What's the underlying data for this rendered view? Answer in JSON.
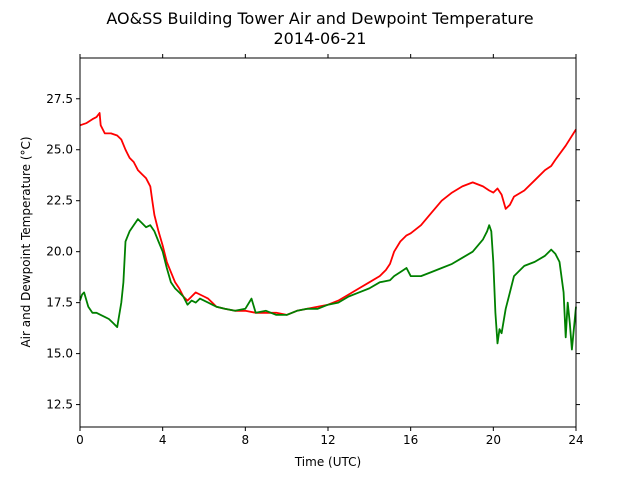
{
  "chart_data": {
    "type": "line",
    "title": "AO&SS Building Tower Air and Dewpoint Temperature",
    "subtitle": "2014-06-21",
    "xlabel": "Time (UTC)",
    "ylabel": "Air and Dewpoint Temperature (°C)",
    "xlim": [
      0,
      24
    ],
    "ylim": [
      11.4,
      29.5
    ],
    "xticks": [
      0,
      4,
      8,
      12,
      16,
      20,
      24
    ],
    "yticks": [
      12.5,
      15.0,
      17.5,
      20.0,
      22.5,
      25.0,
      27.5
    ],
    "grid": false,
    "legend": "none",
    "series": [
      {
        "color": "#ff0000",
        "x": [
          0,
          0.3,
          0.6,
          0.8,
          0.95,
          1.0,
          1.2,
          1.5,
          1.8,
          2.0,
          2.2,
          2.4,
          2.6,
          2.8,
          3.0,
          3.2,
          3.4,
          3.5,
          3.6,
          3.8,
          4.0,
          4.2,
          4.4,
          4.6,
          4.8,
          5.0,
          5.2,
          5.4,
          5.6,
          5.8,
          6.0,
          6.2,
          6.4,
          6.6,
          7.0,
          7.5,
          8.0,
          8.5,
          9.0,
          9.5,
          10.0,
          10.5,
          11.0,
          11.5,
          12.0,
          12.5,
          13.0,
          13.5,
          14.0,
          14.5,
          14.8,
          15.0,
          15.2,
          15.5,
          15.8,
          16.0,
          16.5,
          17.0,
          17.5,
          18.0,
          18.5,
          19.0,
          19.5,
          19.8,
          20.0,
          20.2,
          20.4,
          20.6,
          20.8,
          21.0,
          21.5,
          22.0,
          22.5,
          22.8,
          23.0,
          23.5,
          24.0
        ],
        "values": [
          26.2,
          26.3,
          26.5,
          26.6,
          26.8,
          26.2,
          25.8,
          25.8,
          25.7,
          25.5,
          25.0,
          24.6,
          24.4,
          24.0,
          23.8,
          23.6,
          23.2,
          22.5,
          21.8,
          21.0,
          20.3,
          19.5,
          19.0,
          18.5,
          18.2,
          17.8,
          17.6,
          17.8,
          18.0,
          17.9,
          17.8,
          17.7,
          17.5,
          17.3,
          17.2,
          17.1,
          17.1,
          17.0,
          17.0,
          17.0,
          16.9,
          17.1,
          17.2,
          17.3,
          17.4,
          17.6,
          17.9,
          18.2,
          18.5,
          18.8,
          19.1,
          19.4,
          20.0,
          20.5,
          20.8,
          20.9,
          21.3,
          21.9,
          22.5,
          22.9,
          23.2,
          23.4,
          23.2,
          23.0,
          22.9,
          23.1,
          22.8,
          22.1,
          22.3,
          22.7,
          23.0,
          23.5,
          24.0,
          24.2,
          24.5,
          25.2,
          26.0
        ]
      },
      {
        "color": "#008000",
        "x": [
          0,
          0.1,
          0.2,
          0.4,
          0.6,
          0.8,
          1.0,
          1.2,
          1.4,
          1.6,
          1.8,
          2.0,
          2.1,
          2.2,
          2.4,
          2.6,
          2.8,
          3.0,
          3.2,
          3.4,
          3.6,
          3.8,
          4.0,
          4.2,
          4.4,
          4.6,
          4.8,
          5.0,
          5.2,
          5.4,
          5.6,
          5.8,
          6.0,
          6.2,
          6.4,
          6.6,
          7.0,
          7.5,
          8.0,
          8.3,
          8.5,
          9.0,
          9.5,
          10.0,
          10.5,
          11.0,
          11.5,
          12.0,
          12.5,
          13.0,
          13.5,
          14.0,
          14.5,
          15.0,
          15.2,
          15.5,
          15.8,
          16.0,
          16.5,
          17.0,
          17.5,
          18.0,
          18.5,
          19.0,
          19.5,
          19.7,
          19.8,
          19.9,
          20.0,
          20.1,
          20.2,
          20.3,
          20.4,
          20.6,
          20.8,
          21.0,
          21.5,
          22.0,
          22.5,
          22.8,
          23.0,
          23.2,
          23.4,
          23.5,
          23.6,
          23.7,
          23.8,
          24.0
        ],
        "values": [
          17.6,
          17.9,
          18.0,
          17.3,
          17.0,
          17.0,
          16.9,
          16.8,
          16.7,
          16.5,
          16.3,
          17.5,
          18.5,
          20.5,
          21.0,
          21.3,
          21.6,
          21.4,
          21.2,
          21.3,
          21.0,
          20.5,
          20.0,
          19.2,
          18.5,
          18.2,
          18.0,
          17.8,
          17.4,
          17.6,
          17.5,
          17.7,
          17.6,
          17.5,
          17.4,
          17.3,
          17.2,
          17.1,
          17.2,
          17.7,
          17.0,
          17.1,
          16.9,
          16.9,
          17.1,
          17.2,
          17.2,
          17.4,
          17.5,
          17.8,
          18.0,
          18.2,
          18.5,
          18.6,
          18.8,
          19.0,
          19.2,
          18.8,
          18.8,
          19.0,
          19.2,
          19.4,
          19.7,
          20.0,
          20.6,
          21.0,
          21.3,
          21.0,
          19.5,
          17.0,
          15.5,
          16.2,
          16.0,
          17.2,
          18.0,
          18.8,
          19.3,
          19.5,
          19.8,
          20.1,
          19.9,
          19.5,
          18.0,
          15.8,
          17.5,
          16.5,
          15.2,
          17.3
        ]
      }
    ]
  }
}
